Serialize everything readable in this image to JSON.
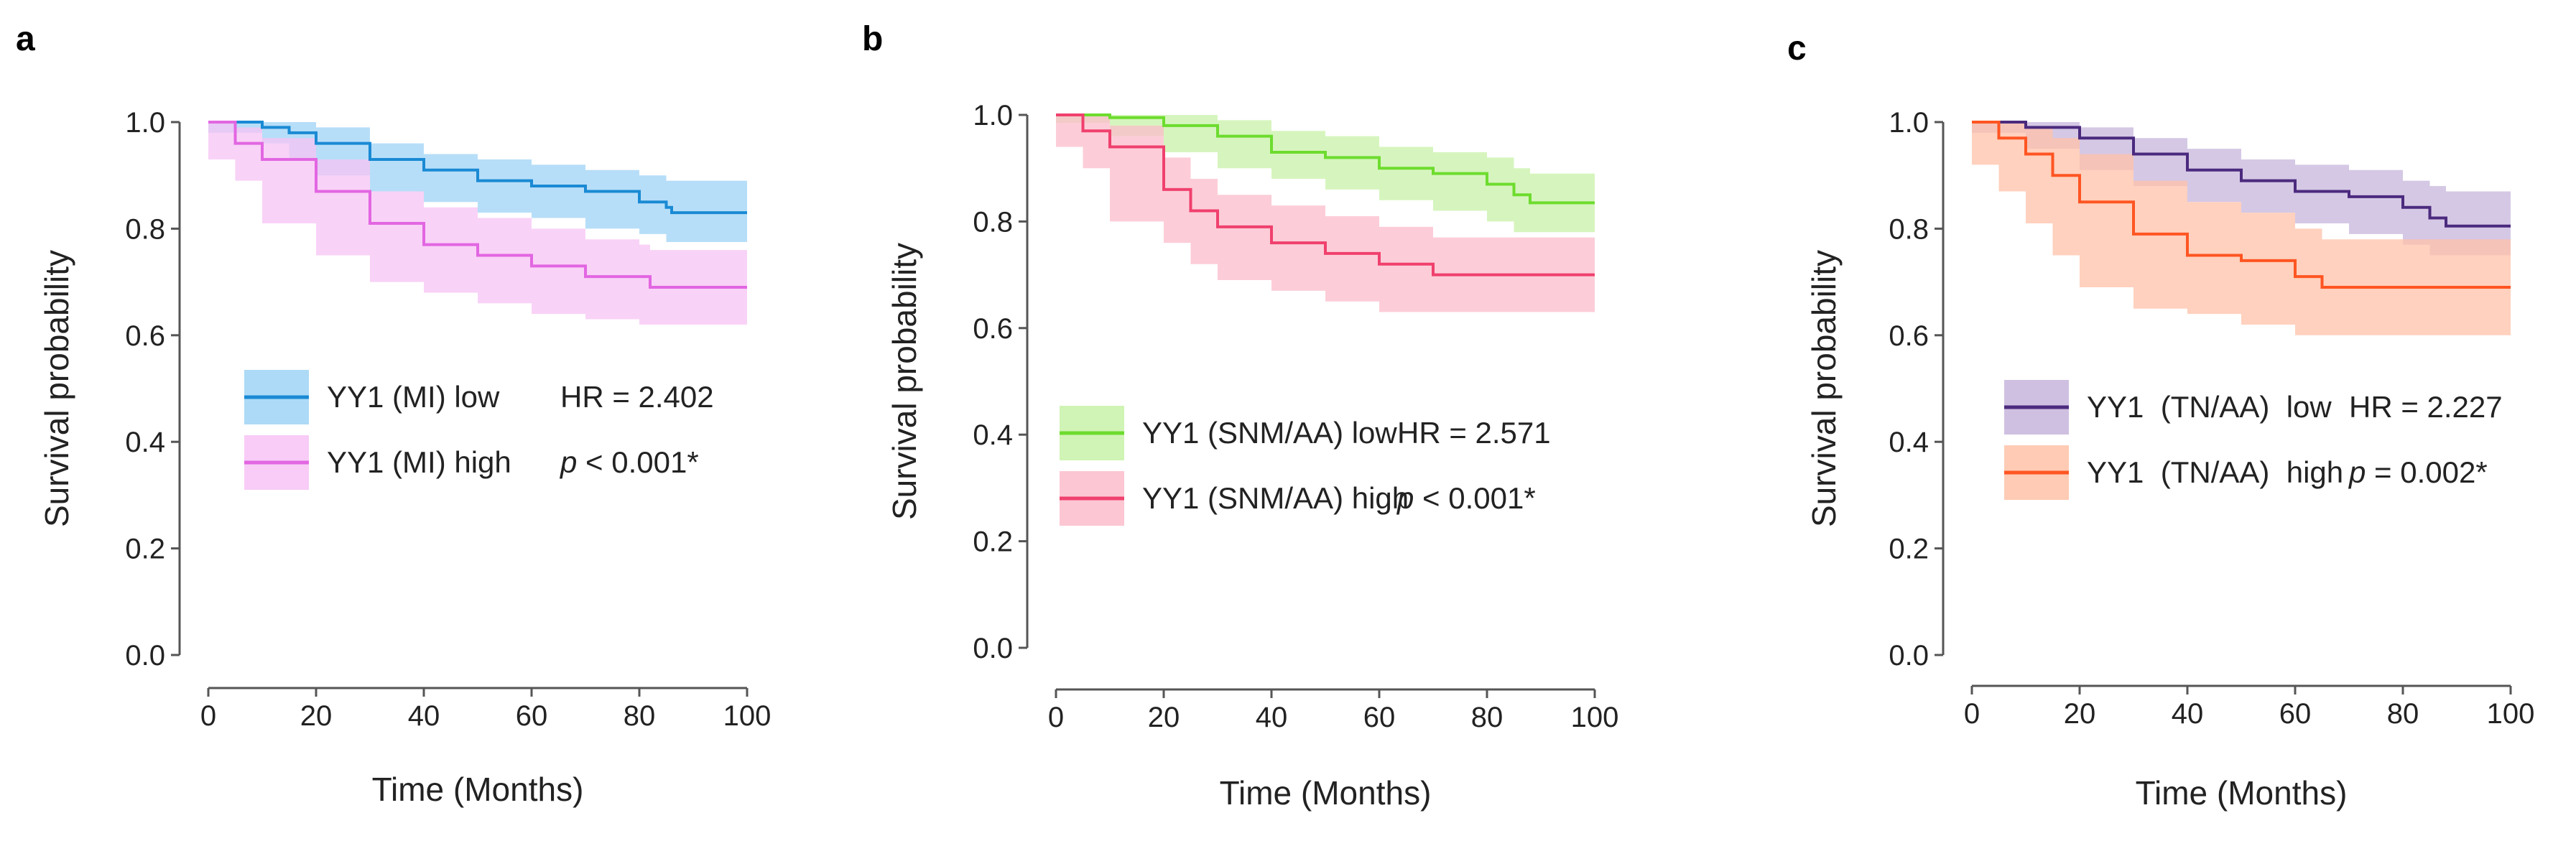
{
  "chart_data": [
    {
      "type": "line",
      "panel": "a",
      "xlabel": "Time (Months)",
      "ylabel": "Survival probability",
      "xlim": [
        0,
        100
      ],
      "ylim": [
        0,
        1.0
      ],
      "xticks": [
        "0",
        "20",
        "40",
        "60",
        "80",
        "100"
      ],
      "yticks": [
        "0.0",
        "0.2",
        "0.4",
        "0.6",
        "0.8",
        "1.0"
      ],
      "grid": false,
      "legend_position": "center-right",
      "series": [
        {
          "name": "YY1 (MI) low",
          "color": "#1a8ad4",
          "band_color": "#9fd3f5",
          "stat": "HR = 2.402",
          "x": [
            0,
            10,
            15,
            20,
            30,
            40,
            50,
            60,
            70,
            80,
            85,
            86,
            100
          ],
          "y": [
            1.0,
            0.99,
            0.98,
            0.96,
            0.93,
            0.91,
            0.89,
            0.88,
            0.87,
            0.85,
            0.84,
            0.83,
            0.83
          ],
          "lower": [
            1.0,
            0.98,
            0.96,
            0.93,
            0.9,
            0.87,
            0.85,
            0.83,
            0.82,
            0.8,
            0.79,
            0.775,
            0.775
          ],
          "upper": [
            1.0,
            1.0,
            1.0,
            0.99,
            0.96,
            0.94,
            0.93,
            0.92,
            0.91,
            0.9,
            0.89,
            0.89,
            0.89
          ]
        },
        {
          "name": "YY1 (MI) high",
          "color": "#e266e2",
          "band_color": "#f7c3f4",
          "stat": "p < 0.001*",
          "x": [
            0,
            5,
            10,
            20,
            30,
            40,
            50,
            60,
            70,
            80,
            82,
            100
          ],
          "y": [
            1.0,
            0.96,
            0.93,
            0.87,
            0.81,
            0.77,
            0.75,
            0.73,
            0.71,
            0.71,
            0.69,
            0.69
          ],
          "lower": [
            1.0,
            0.93,
            0.89,
            0.81,
            0.75,
            0.7,
            0.68,
            0.66,
            0.64,
            0.63,
            0.62,
            0.62
          ],
          "upper": [
            1.0,
            0.99,
            0.97,
            0.93,
            0.87,
            0.84,
            0.82,
            0.8,
            0.78,
            0.77,
            0.76,
            0.76
          ]
        }
      ]
    },
    {
      "type": "line",
      "panel": "b",
      "xlabel": "Time (Months)",
      "ylabel": "Survival probability",
      "xlim": [
        0,
        100
      ],
      "ylim": [
        0,
        1.0
      ],
      "xticks": [
        "0",
        "20",
        "40",
        "60",
        "80",
        "100"
      ],
      "yticks": [
        "0.0",
        "0.2",
        "0.4",
        "0.6",
        "0.8",
        "1.0"
      ],
      "grid": false,
      "legend_position": "center-right",
      "series": [
        {
          "name": "YY1 (SNM/AA) low",
          "color": "#6ddc2e",
          "band_color": "#c8f2a8",
          "stat": "HR = 2.571",
          "x": [
            0,
            10,
            20,
            30,
            40,
            50,
            60,
            70,
            80,
            85,
            88,
            100
          ],
          "y": [
            1.0,
            0.995,
            0.98,
            0.96,
            0.93,
            0.92,
            0.9,
            0.89,
            0.87,
            0.85,
            0.835,
            0.835
          ],
          "lower": [
            1.0,
            0.985,
            0.96,
            0.93,
            0.9,
            0.88,
            0.86,
            0.84,
            0.82,
            0.8,
            0.78,
            0.78
          ],
          "upper": [
            1.0,
            1.0,
            1.0,
            0.99,
            0.97,
            0.96,
            0.94,
            0.93,
            0.92,
            0.9,
            0.89,
            0.89
          ]
        },
        {
          "name": "YY1 (SNM/AA) high",
          "color": "#f0406e",
          "band_color": "#fbbccb",
          "stat": "p < 0.001*",
          "x": [
            0,
            5,
            10,
            20,
            25,
            30,
            40,
            50,
            60,
            70,
            100
          ],
          "y": [
            1.0,
            0.97,
            0.94,
            0.86,
            0.82,
            0.79,
            0.76,
            0.74,
            0.72,
            0.7,
            0.7
          ],
          "lower": [
            1.0,
            0.94,
            0.9,
            0.8,
            0.76,
            0.72,
            0.69,
            0.67,
            0.65,
            0.63,
            0.63
          ],
          "upper": [
            1.0,
            1.0,
            0.98,
            0.92,
            0.88,
            0.85,
            0.83,
            0.81,
            0.79,
            0.77,
            0.77
          ]
        }
      ]
    },
    {
      "type": "line",
      "panel": "c",
      "xlabel": "Time (Months)",
      "ylabel": "Survival probability",
      "xlim": [
        0,
        100
      ],
      "ylim": [
        0,
        1.0
      ],
      "xticks": [
        "0",
        "20",
        "40",
        "60",
        "80",
        "100"
      ],
      "yticks": [
        "0.0",
        "0.2",
        "0.4",
        "0.6",
        "0.8",
        "1.0"
      ],
      "grid": false,
      "legend_position": "center-right",
      "series": [
        {
          "name": "YY1  (TN/AA)  low",
          "color": "#4b2a7e",
          "band_color": "#c7b5dc",
          "stat": "HR = 2.227",
          "x": [
            0,
            10,
            20,
            30,
            40,
            50,
            60,
            70,
            80,
            85,
            88,
            100
          ],
          "y": [
            1.0,
            0.99,
            0.97,
            0.94,
            0.91,
            0.89,
            0.87,
            0.86,
            0.84,
            0.82,
            0.805,
            0.805
          ],
          "lower": [
            1.0,
            0.98,
            0.95,
            0.91,
            0.88,
            0.85,
            0.83,
            0.81,
            0.79,
            0.77,
            0.75,
            0.75
          ],
          "upper": [
            1.0,
            1.0,
            0.99,
            0.97,
            0.95,
            0.93,
            0.92,
            0.91,
            0.89,
            0.88,
            0.87,
            0.87
          ]
        },
        {
          "name": "YY1  (TN/AA)  high",
          "color": "#ff5522",
          "band_color": "#ffc2a8",
          "stat": "p = 0.002*",
          "x": [
            0,
            5,
            10,
            15,
            20,
            30,
            40,
            50,
            60,
            65,
            100
          ],
          "y": [
            1.0,
            0.97,
            0.94,
            0.9,
            0.85,
            0.79,
            0.75,
            0.74,
            0.71,
            0.69,
            0.69
          ],
          "lower": [
            1.0,
            0.92,
            0.87,
            0.81,
            0.75,
            0.69,
            0.65,
            0.64,
            0.62,
            0.6,
            0.6
          ],
          "upper": [
            1.0,
            1.0,
            0.99,
            0.97,
            0.94,
            0.89,
            0.85,
            0.83,
            0.8,
            0.78,
            0.78
          ]
        }
      ]
    }
  ]
}
